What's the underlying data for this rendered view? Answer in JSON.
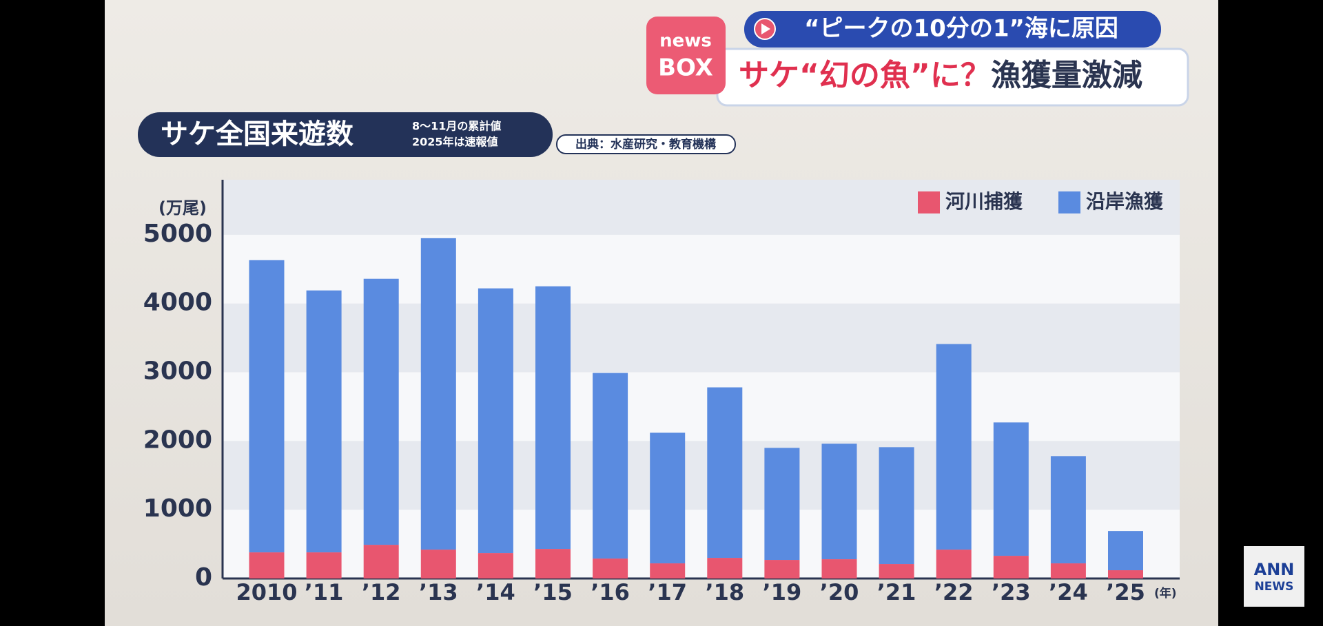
{
  "header": {
    "badge_top": "news",
    "badge_bottom": "BOX",
    "subheadline": "“ピークの10分の1”海に原因",
    "headline_red": "サケ“幻の魚”に？",
    "headline_dark": "漁獲量激減"
  },
  "logo": {
    "line1": "ANN",
    "line2": "NEWS"
  },
  "chart_data": {
    "type": "stacked_bar",
    "title": "サケ全国来遊数",
    "notes": [
      "8～11月の累計値",
      "2025年は速報値"
    ],
    "source": "出典：水産研究・教育機構",
    "y_unit": "(万尾)",
    "x_unit": "(年)",
    "categories": [
      "2010",
      "’11",
      "’12",
      "’13",
      "’14",
      "’15",
      "’16",
      "’17",
      "’18",
      "’19",
      "’20",
      "’21",
      "’22",
      "’23",
      "’24",
      "’25"
    ],
    "series": [
      {
        "name": "河川捕獲",
        "color": "#e8566f",
        "values": [
          380,
          380,
          490,
          420,
          370,
          430,
          290,
          220,
          300,
          270,
          280,
          210,
          420,
          330,
          220,
          120
        ]
      },
      {
        "name": "沿岸漁獲",
        "color": "#5a8be0",
        "values": [
          4250,
          3810,
          3870,
          4530,
          3850,
          3820,
          2700,
          1900,
          2480,
          1630,
          1680,
          1700,
          2990,
          1940,
          1560,
          570
        ]
      }
    ],
    "ylim": [
      0,
      5800
    ],
    "yticks": [
      0,
      1000,
      2000,
      3000,
      4000,
      5000
    ],
    "legend": "top-right"
  }
}
